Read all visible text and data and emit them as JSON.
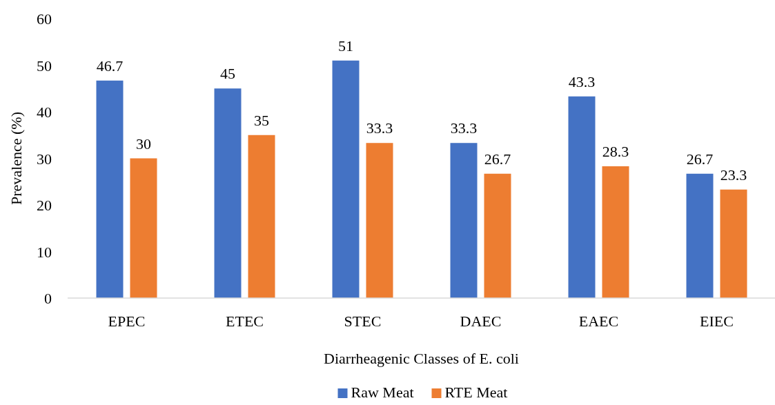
{
  "chart_data": {
    "type": "bar",
    "categories": [
      "EPEC",
      "ETEC",
      "STEC",
      "DAEC",
      "EAEC",
      "EIEC"
    ],
    "series": [
      {
        "name": "Raw Meat",
        "color": "#4472c4",
        "values": [
          46.7,
          45,
          51,
          33.3,
          43.3,
          26.7
        ]
      },
      {
        "name": "RTE Meat",
        "color": "#ed7d31",
        "values": [
          30,
          35,
          33.3,
          26.7,
          28.3,
          23.3
        ]
      }
    ],
    "xlabel": "Diarrheagenic Classes of E. coli",
    "ylabel": "Prevalence (%)",
    "ylim": [
      0,
      60
    ],
    "yticks": [
      0,
      10,
      20,
      30,
      40,
      50,
      60
    ],
    "data_labels": true,
    "legend": "bottom"
  }
}
